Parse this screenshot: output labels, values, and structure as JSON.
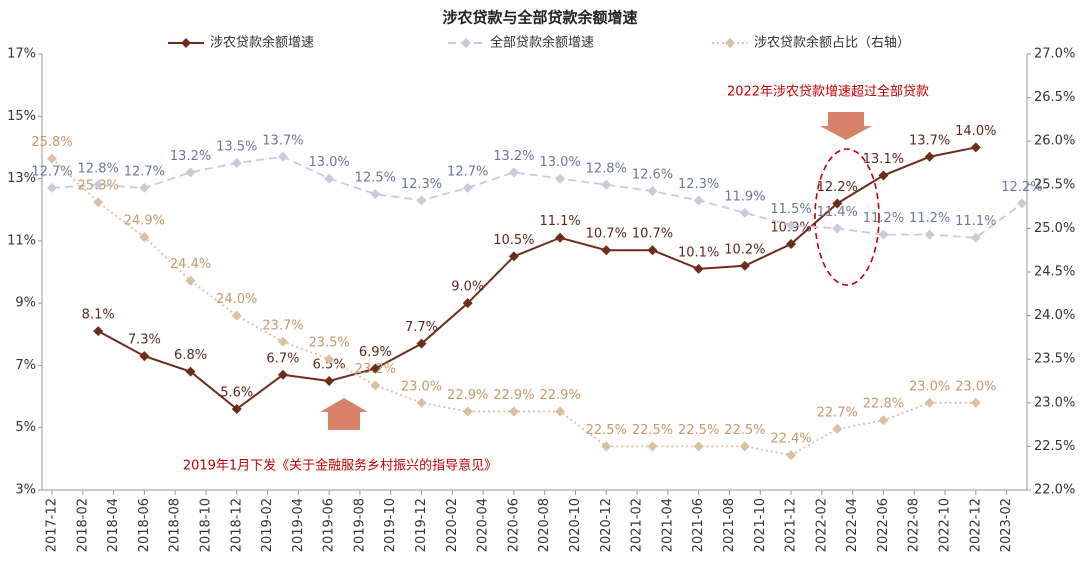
{
  "chart_data": {
    "type": "line",
    "title": "涉农贷款与全部贷款余额增速",
    "x": [
      "2017-12",
      "2018-03",
      "2018-06",
      "2018-09",
      "2018-12",
      "2019-03",
      "2019-06",
      "2019-09",
      "2019-12",
      "2020-03",
      "2020-06",
      "2020-09",
      "2020-12",
      "2021-03",
      "2021-06",
      "2021-09",
      "2021-12",
      "2022-03",
      "2022-06",
      "2022-09",
      "2022-12",
      "2023-03"
    ],
    "xticks": [
      "2017-12",
      "2018-02",
      "2018-04",
      "2018-06",
      "2018-08",
      "2018-10",
      "2018-12",
      "2019-02",
      "2019-04",
      "2019-06",
      "2019-08",
      "2019-10",
      "2019-12",
      "2020-02",
      "2020-04",
      "2020-06",
      "2020-08",
      "2020-10",
      "2020-12",
      "2021-02",
      "2021-04",
      "2021-06",
      "2021-08",
      "2021-10",
      "2021-12",
      "2022-02",
      "2022-04",
      "2022-06",
      "2022-08",
      "2022-10",
      "2022-12",
      "2023-02"
    ],
    "ylim": [
      3,
      17
    ],
    "yticks": [
      {
        "value": 3,
        "label": "3%"
      },
      {
        "value": 5,
        "label": "5%"
      },
      {
        "value": 7,
        "label": "7%"
      },
      {
        "value": 9,
        "label": "9%"
      },
      {
        "value": 11,
        "label": "11%"
      },
      {
        "value": 13,
        "label": "13%"
      },
      {
        "value": 15,
        "label": "15%"
      },
      {
        "value": 17,
        "label": "17%"
      }
    ],
    "y2lim": [
      22,
      27
    ],
    "y2ticks": [
      {
        "value": 22,
        "label": "22.0%"
      },
      {
        "value": 22.5,
        "label": "22.5%"
      },
      {
        "value": 23,
        "label": "23.0%"
      },
      {
        "value": 23.5,
        "label": "23.5%"
      },
      {
        "value": 24,
        "label": "24.0%"
      },
      {
        "value": 24.5,
        "label": "24.5%"
      },
      {
        "value": 25,
        "label": "25.0%"
      },
      {
        "value": 25.5,
        "label": "25.5%"
      },
      {
        "value": 26,
        "label": "26.0%"
      },
      {
        "value": 26.5,
        "label": "26.5%"
      },
      {
        "value": 27,
        "label": "27.0%"
      }
    ],
    "series": [
      {
        "name": "涉农贷款余额增速",
        "color": "#6e2c1c",
        "dash": "solid",
        "label_color": "#5a2a1e",
        "values": [
          null,
          8.1,
          7.3,
          6.8,
          5.6,
          6.7,
          6.5,
          6.9,
          7.7,
          9.0,
          10.5,
          11.1,
          10.7,
          10.7,
          10.1,
          10.2,
          10.9,
          12.2,
          13.1,
          13.7,
          14.0,
          null
        ],
        "value_labels": [
          null,
          "8.1%",
          "7.3%",
          "6.8%",
          "5.6%",
          "6.7%",
          "6.5%",
          "6.9%",
          "7.7%",
          "9.0%",
          "10.5%",
          "11.1%",
          "10.7%",
          "10.7%",
          "10.1%",
          "10.2%",
          "10.9%",
          "12.2%",
          "13.1%",
          "13.7%",
          "14.0%",
          null
        ]
      },
      {
        "name": "全部贷款余额增速",
        "color": "#c9cbd8",
        "dash": "dashed",
        "label_color": "#6c7896",
        "values": [
          12.7,
          12.8,
          12.7,
          13.2,
          13.5,
          13.7,
          13.0,
          12.5,
          12.3,
          12.7,
          13.2,
          13.0,
          12.8,
          12.6,
          12.3,
          11.9,
          11.5,
          11.4,
          11.2,
          11.2,
          11.1,
          12.2
        ],
        "value_labels": [
          "12.7%",
          "12.8%",
          "12.7%",
          "13.2%",
          "13.5%",
          "13.7%",
          "13.0%",
          "12.5%",
          "12.3%",
          "12.7%",
          "13.2%",
          "13.0%",
          "12.8%",
          "12.6%",
          "12.3%",
          "11.9%",
          "11.5%",
          "11.4%",
          "11.2%",
          "11.2%",
          "11.1%",
          "12.2%"
        ]
      },
      {
        "name": "涉农贷款余额占比（右轴）",
        "color": "#dcc0a2",
        "dash": "dotted",
        "axis": "y2",
        "label_color": "#c49a6c",
        "values": [
          25.8,
          25.3,
          24.9,
          24.4,
          24.0,
          23.7,
          23.5,
          23.2,
          23.0,
          22.9,
          22.9,
          22.9,
          22.5,
          22.5,
          22.5,
          22.5,
          22.4,
          22.7,
          22.8,
          23.0,
          23.0,
          null
        ],
        "value_labels": [
          "25.8%",
          "25.3%",
          "24.9%",
          "24.4%",
          "24.0%",
          "23.7%",
          "23.5%",
          "23.2%",
          "23.0%",
          "22.9%",
          "22.9%",
          "22.9%",
          "22.5%",
          "22.5%",
          "22.5%",
          "22.5%",
          "22.4%",
          "22.7%",
          "22.8%",
          "23.0%",
          "23.0%",
          null
        ]
      }
    ],
    "annotations": [
      "2022年涉农贷款增速超过全部贷款",
      "2019年1月下发《关于金融服务乡村振兴的指导意见》"
    ]
  }
}
